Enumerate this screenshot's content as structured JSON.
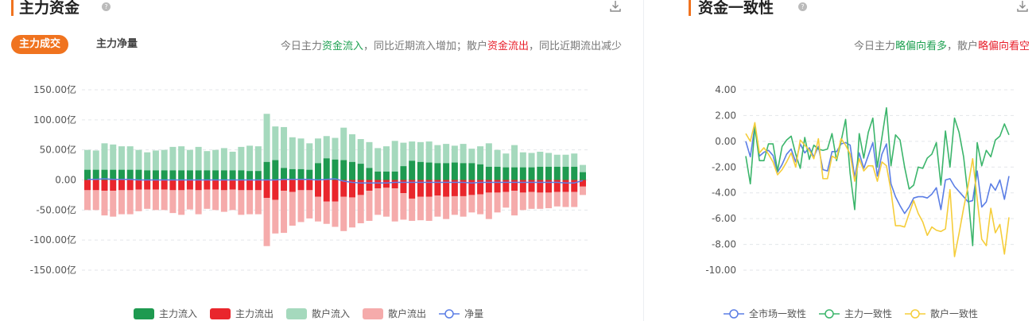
{
  "left_panel": {
    "title": "主力资金",
    "help_icon": "question-circle-icon",
    "download_icon": "download-icon",
    "tabs": [
      {
        "label": "主力成交",
        "active": true
      },
      {
        "label": "主力净量",
        "active": false
      }
    ],
    "description": {
      "p1": "今日主力",
      "h1": "资金流入",
      "p2": "，同比近期流入增加；散户",
      "h2": "资金流出",
      "p3": "，同比近期流出减少"
    }
  },
  "right_panel": {
    "title": "资金一致性",
    "help_icon": "question-circle-icon",
    "download_icon": "download-icon",
    "description": {
      "p1": "今日主力",
      "h1": "略偏向看多",
      "p2": "，散户",
      "h2": "略偏向看空"
    }
  },
  "colors": {
    "accent": "#f0731f",
    "positive_text": "#1fa152",
    "negative_text": "#e8202b"
  },
  "chart_data": [
    {
      "type": "bar",
      "stacked": true,
      "ylim": [
        -150,
        150
      ],
      "yticks": [
        "150.00亿",
        "100.00亿",
        "50.00亿",
        "0.00",
        "-50.00亿",
        "-100.00亿",
        "-150.00亿"
      ],
      "ytick_values": [
        150,
        100,
        50,
        0,
        -50,
        -100,
        -150
      ],
      "grid": true,
      "legend_position": "bottom",
      "series": [
        {
          "name": "主力流入",
          "color": "#1e9a50",
          "values": [
            17,
            17,
            17,
            17,
            17,
            17,
            17,
            16,
            16,
            16,
            16,
            16,
            16,
            16,
            16,
            16,
            16,
            16,
            16,
            15,
            15,
            30,
            33,
            20,
            18,
            18,
            17,
            28,
            36,
            34,
            33,
            30,
            27,
            20,
            14,
            14,
            14,
            23,
            32,
            30,
            29,
            28,
            28,
            29,
            28,
            28,
            26,
            22,
            22,
            21,
            21,
            21,
            21,
            22,
            22,
            22,
            22,
            22,
            13
          ]
        },
        {
          "name": "主力流出",
          "color": "#e9262c",
          "values": [
            -17,
            -17,
            -18,
            -18,
            -17,
            -17,
            -16,
            -16,
            -16,
            -16,
            -17,
            -17,
            -16,
            -17,
            -16,
            -16,
            -17,
            -16,
            -17,
            -17,
            -17,
            -30,
            -33,
            -18,
            -20,
            -17,
            -17,
            -28,
            -36,
            -36,
            -28,
            -29,
            -25,
            -18,
            -14,
            -13,
            -14,
            -22,
            -31,
            -28,
            -28,
            -26,
            -28,
            -27,
            -27,
            -25,
            -24,
            -21,
            -21,
            -20,
            -18,
            -21,
            -20,
            -21,
            -21,
            -20,
            -20,
            -20,
            -11
          ]
        },
        {
          "name": "散户流入",
          "color": "#a5d9bd",
          "values": [
            33,
            32,
            44,
            42,
            39,
            39,
            33,
            30,
            33,
            34,
            39,
            40,
            34,
            39,
            32,
            34,
            37,
            31,
            39,
            42,
            41,
            80,
            56,
            68,
            53,
            51,
            44,
            41,
            37,
            36,
            54,
            46,
            41,
            43,
            39,
            42,
            51,
            39,
            32,
            33,
            35,
            30,
            32,
            28,
            32,
            24,
            30,
            39,
            28,
            23,
            37,
            25,
            24,
            25,
            23,
            20,
            20,
            22,
            12
          ]
        },
        {
          "name": "散户流出",
          "color": "#f5abab",
          "values": [
            -33,
            -33,
            -41,
            -43,
            -40,
            -40,
            -36,
            -32,
            -34,
            -34,
            -38,
            -41,
            -33,
            -40,
            -32,
            -34,
            -36,
            -34,
            -41,
            -40,
            -40,
            -80,
            -56,
            -70,
            -56,
            -53,
            -47,
            -41,
            -37,
            -42,
            -57,
            -50,
            -47,
            -50,
            -44,
            -48,
            -55,
            -44,
            -37,
            -39,
            -40,
            -35,
            -37,
            -31,
            -34,
            -29,
            -33,
            -44,
            -33,
            -26,
            -41,
            -29,
            -28,
            -27,
            -26,
            -24,
            -25,
            -25,
            -14
          ]
        },
        {
          "name": "净量",
          "color": "#5b7ee5",
          "values": [
            1,
            1,
            2,
            1,
            1,
            1,
            0,
            0,
            0,
            0,
            0,
            0,
            0,
            0,
            0,
            0,
            0,
            0,
            0,
            0,
            0,
            0,
            0,
            1,
            1,
            1,
            1,
            0,
            1,
            2,
            -2,
            -4,
            -5,
            -5,
            -5,
            -5,
            -4,
            -4,
            -4,
            -4,
            -4,
            -4,
            -4,
            -4,
            -4,
            -5,
            -4,
            -4,
            -4,
            -4,
            -4,
            -4,
            -4,
            -4,
            -4,
            -4,
            -5,
            -5,
            -1
          ]
        }
      ]
    },
    {
      "type": "line",
      "ylim": [
        -10,
        4
      ],
      "yticks": [
        "4.00",
        "2.00",
        "0.00",
        "-2.00",
        "-4.00",
        "-6.00",
        "-8.00",
        "-10.00"
      ],
      "ytick_values": [
        4,
        2,
        0,
        -2,
        -4,
        -6,
        -8,
        -10
      ],
      "grid": true,
      "legend_position": "bottom",
      "series": [
        {
          "name": "全市场一致性",
          "color": "#5b7ee5",
          "values": [
            0,
            -1.2,
            1.2,
            -1.15,
            -0.85,
            -0.7,
            -1.1,
            -2.4,
            -1.8,
            -1.0,
            -0.6,
            -1.6,
            -0.2,
            -0.9,
            -0.5,
            -1.2,
            -0.4,
            -2.2,
            -2.3,
            -0.8,
            -0.8,
            -0.2,
            -0.1,
            -0.3,
            -2.8,
            -0.9,
            -2.1,
            -1.1,
            -0.1,
            -2.7,
            -1.0,
            -0.2,
            -3.3,
            -4.3,
            -5.0,
            -5.6,
            -5.1,
            -4.4,
            -4.3,
            -4.3,
            -4.4,
            -4.1,
            -3.6,
            -5.3,
            -3.0,
            -2.9,
            -3.5,
            -3.9,
            -4.3,
            -4.7,
            -4.6,
            -2.3,
            -5.1,
            -4.7,
            -3.3,
            -3.8,
            -3.0,
            -4.5,
            -2.7
          ]
        },
        {
          "name": "主力一致性",
          "color": "#3bb56b",
          "values": [
            -1.15,
            -3.3,
            1.1,
            -1.5,
            -1.5,
            -0.2,
            -0.2,
            -2.3,
            -0.4,
            0.1,
            0.4,
            -1.0,
            -2.1,
            0.3,
            -1.4,
            -0.3,
            -0.6,
            -0.7,
            -0.6,
            0.6,
            -1.5,
            0,
            1.7,
            -2.5,
            -5.3,
            0.6,
            -1.3,
            0.7,
            1.8,
            -2.0,
            0.3,
            2.6,
            -1.9,
            0.5,
            0.1,
            -2.0,
            -3.7,
            -3.4,
            -2.0,
            -2.1,
            -1.3,
            -1.0,
            -0.1,
            -3.4,
            0.8,
            -2.0,
            1.8,
            0.7,
            -1.2,
            -4.3,
            -8.1,
            -0.1,
            -1.9,
            -0.7,
            -1.2,
            0.1,
            0.4,
            1.35,
            0.5
          ]
        },
        {
          "name": "散户一致性",
          "color": "#f5cd3a",
          "values": [
            0.6,
            0,
            1.45,
            -0.9,
            -0.5,
            -1.0,
            -1.6,
            -2.6,
            -2.2,
            -1.6,
            -0.9,
            -2.0,
            0.1,
            -0.3,
            -0.7,
            -1.35,
            0.2,
            -2.9,
            -2.9,
            -1.15,
            -1.35,
            0.2,
            -0.3,
            -1.0,
            -3.1,
            -1.35,
            -2.3,
            -1.9,
            -1.9,
            -3.1,
            -1.6,
            -1.9,
            -3.85,
            -6.55,
            -6.55,
            -6.65,
            -5.6,
            -4.6,
            -5.6,
            -6.25,
            -7.3,
            -6.65,
            -6.9,
            -7.0,
            -6.8,
            -3.75,
            -8.95,
            -7.15,
            -5.2,
            -3.45,
            -1.35,
            -4.5,
            -7.6,
            -8.1,
            -5.2,
            -7.1,
            -6.45,
            -8.75,
            -5.9
          ]
        }
      ]
    }
  ]
}
